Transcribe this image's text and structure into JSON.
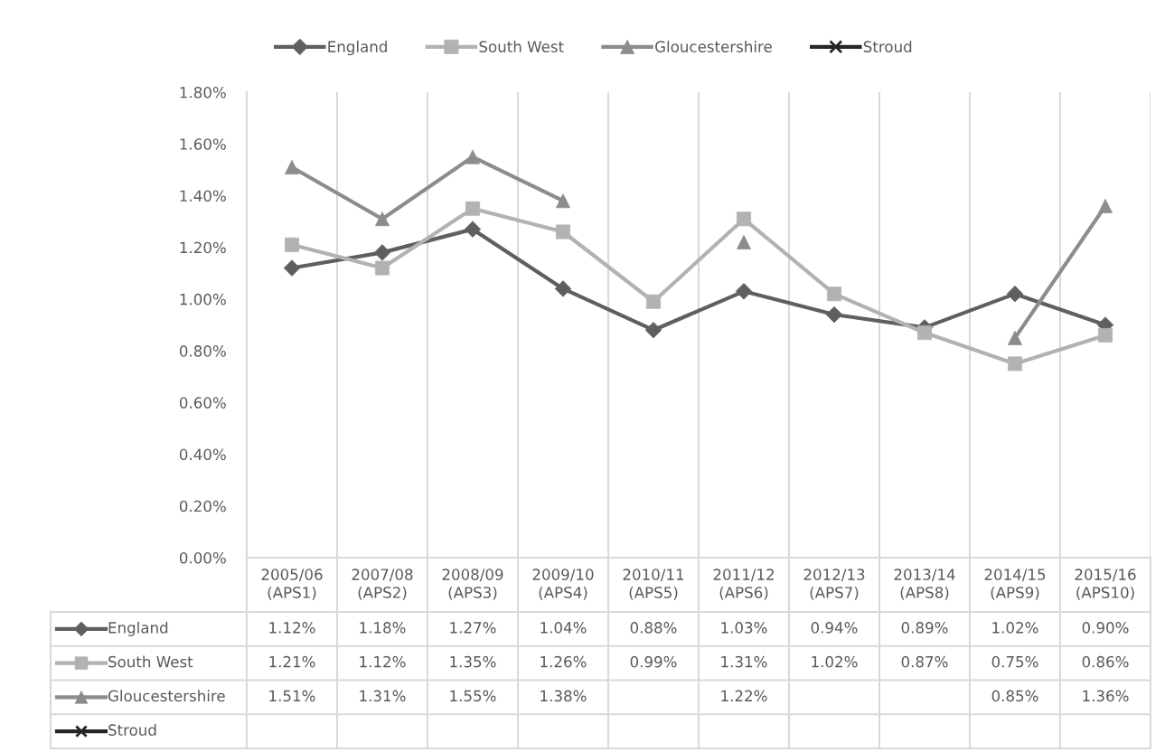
{
  "chart_data": {
    "type": "line",
    "categories": [
      "2005/06\n(APS1)",
      "2007/08\n(APS2)",
      "2008/09\n(APS3)",
      "2009/10\n(APS4)",
      "2010/11\n(APS5)",
      "2011/12\n(APS6)",
      "2012/13\n(APS7)",
      "2013/14\n(APS8)",
      "2014/15\n(APS9)",
      "2015/16\n(APS10)"
    ],
    "series": [
      {
        "name": "England",
        "color": "#5f5f5f",
        "marker": "diamond",
        "values": [
          1.12,
          1.18,
          1.27,
          1.04,
          0.88,
          1.03,
          0.94,
          0.89,
          1.02,
          0.9
        ],
        "value_labels": [
          "1.12%",
          "1.18%",
          "1.27%",
          "1.04%",
          "0.88%",
          "1.03%",
          "0.94%",
          "0.89%",
          "1.02%",
          "0.90%"
        ]
      },
      {
        "name": "South West",
        "color": "#b2b2b2",
        "marker": "square",
        "values": [
          1.21,
          1.12,
          1.35,
          1.26,
          0.99,
          1.31,
          1.02,
          0.87,
          0.75,
          0.86
        ],
        "value_labels": [
          "1.21%",
          "1.12%",
          "1.35%",
          "1.26%",
          "0.99%",
          "1.31%",
          "1.02%",
          "0.87%",
          "0.75%",
          "0.86%"
        ]
      },
      {
        "name": "Gloucestershire",
        "color": "#8c8c8c",
        "marker": "triangle",
        "values": [
          1.51,
          1.31,
          1.55,
          1.38,
          null,
          1.22,
          null,
          null,
          0.85,
          1.36
        ],
        "value_labels": [
          "1.51%",
          "1.31%",
          "1.55%",
          "1.38%",
          null,
          "1.22%",
          null,
          null,
          "0.85%",
          "1.36%"
        ]
      },
      {
        "name": "Stroud",
        "color": "#262626",
        "marker": "cross",
        "values": [
          null,
          null,
          null,
          null,
          null,
          null,
          null,
          null,
          null,
          null
        ],
        "value_labels": [
          null,
          null,
          null,
          null,
          null,
          null,
          null,
          null,
          null,
          null
        ]
      }
    ],
    "ylim": [
      0,
      1.8
    ],
    "yticks": [
      {
        "value": 0,
        "label": "0.00%"
      },
      {
        "value": 0.2,
        "label": "0.20%"
      },
      {
        "value": 0.4,
        "label": "0.40%"
      },
      {
        "value": 0.6,
        "label": "0.60%"
      },
      {
        "value": 0.8,
        "label": "0.80%"
      },
      {
        "value": 1.0,
        "label": "1.00%"
      },
      {
        "value": 1.2,
        "label": "1.20%"
      },
      {
        "value": 1.4,
        "label": "1.40%"
      },
      {
        "value": 1.6,
        "label": "1.60%"
      },
      {
        "value": 1.8,
        "label": "1.80%"
      }
    ],
    "grid": "x",
    "legend": "top"
  }
}
